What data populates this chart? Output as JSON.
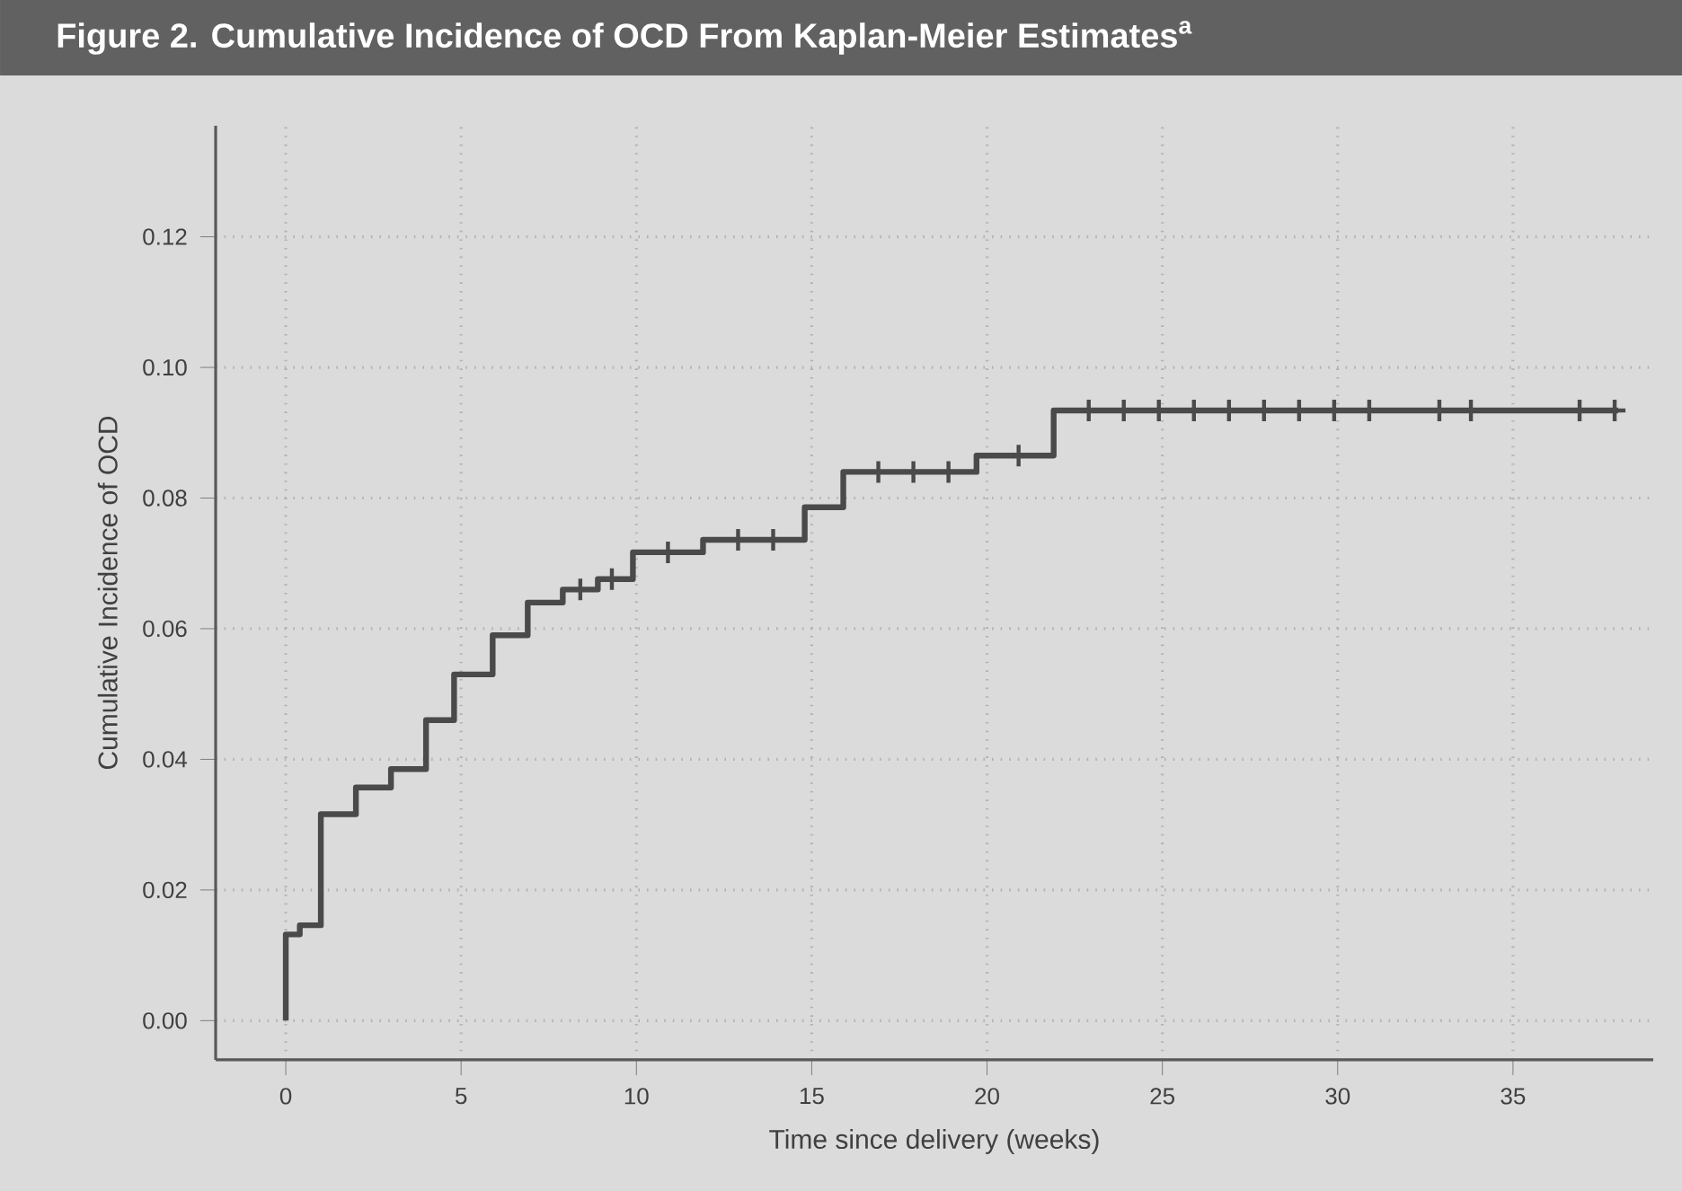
{
  "chart_data": {
    "type": "step",
    "title": "Figure 2. Cumulative Incidence of OCD From Kaplan-Meier Estimates$^{a}$",
    "xlabel": "Time since delivery (weeks)",
    "ylabel": "Cumulative Incidence of OCD",
    "xlim": [
      -2,
      39
    ],
    "ylim": [
      -0.006,
      0.137
    ],
    "xticks": [
      0,
      5,
      10,
      15,
      20,
      25,
      30,
      35
    ],
    "yticks": [
      {
        "value": 0,
        "label": "0.00"
      },
      {
        "value": 0.02,
        "label": "0.02"
      },
      {
        "value": 0.04,
        "label": "0.04"
      },
      {
        "value": 0.06,
        "label": "0.06"
      },
      {
        "value": 0.08,
        "label": "0.08"
      },
      {
        "value": 0.1,
        "label": "0.10"
      },
      {
        "value": 0.12,
        "label": "0.12"
      }
    ],
    "grid": true,
    "series": [
      {
        "color": "#4a4a4a",
        "x": [
          0,
          0,
          0.4,
          1.0,
          2.0,
          3.0,
          4.0,
          4.8,
          5.9,
          6.9,
          7.9,
          8.9,
          9.9,
          11.9,
          14.8,
          15.9,
          19.7,
          21.9,
          38.0
        ],
        "values": [
          0,
          0.0132,
          0.0146,
          0.0316,
          0.0357,
          0.0385,
          0.046,
          0.053,
          0.059,
          0.064,
          0.066,
          0.0676,
          0.0717,
          0.0736,
          0.0786,
          0.084,
          0.0865,
          0.0934,
          0.0934
        ]
      },
      {
        "type": "scatter",
        "marker": "cross",
        "color": "#4a4a4a",
        "x": [
          8.4,
          9.3,
          10.9,
          12.9,
          13.9,
          16.9,
          17.9,
          18.9,
          20.9,
          22.9,
          23.9,
          24.9,
          25.9,
          26.9,
          27.9,
          28.9,
          29.9,
          30.9,
          32.9,
          33.8,
          36.9,
          37.9
        ],
        "values": [
          0.066,
          0.0676,
          0.0717,
          0.0736,
          0.0736,
          0.084,
          0.084,
          0.084,
          0.0865,
          0.0934,
          0.0934,
          0.0934,
          0.0934,
          0.0934,
          0.0934,
          0.0934,
          0.0934,
          0.0934,
          0.0934,
          0.0934,
          0.0934,
          0.0934
        ]
      }
    ]
  }
}
